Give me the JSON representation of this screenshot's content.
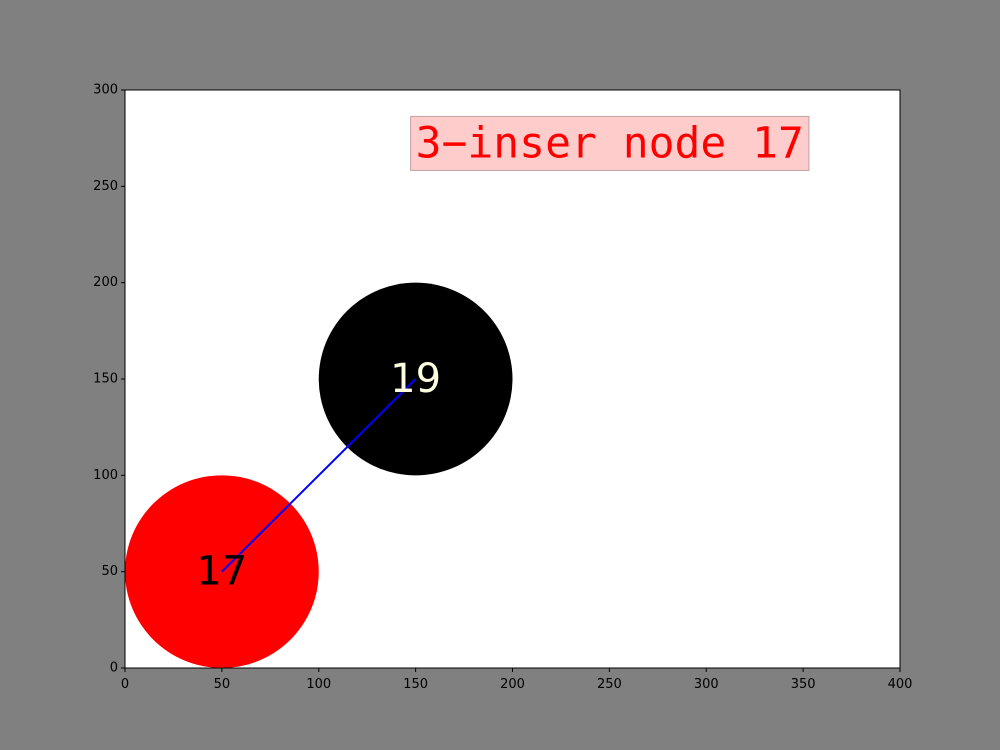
{
  "chart_data": {
    "type": "scatter",
    "title": "",
    "xlabel": "",
    "ylabel": "",
    "xlim": [
      0,
      400
    ],
    "ylim": [
      0,
      300
    ],
    "grid": false,
    "x_ticks": [
      0,
      50,
      100,
      150,
      200,
      250,
      300,
      350,
      400
    ],
    "y_ticks": [
      0,
      50,
      100,
      150,
      200,
      250,
      300
    ],
    "nodes": [
      {
        "label": "17",
        "x": 50,
        "y": 50,
        "radius": 50,
        "fill": "#ff0000",
        "text_color": "#000000"
      },
      {
        "label": "19",
        "x": 150,
        "y": 150,
        "radius": 50,
        "fill": "#000000",
        "text_color": "#fffde0"
      }
    ],
    "edges": [
      {
        "from": [
          50,
          50
        ],
        "to": [
          150,
          150
        ],
        "color": "#0000ff"
      }
    ],
    "annotation": {
      "text": "3−inser node 17",
      "x": 150,
      "y": 265,
      "color": "#ff0000",
      "box_fill": "#ffcccc",
      "box_edge": "#bfa3a3"
    }
  },
  "colors": {
    "figure_bg": "#808080",
    "axes_bg": "#ffffff"
  }
}
